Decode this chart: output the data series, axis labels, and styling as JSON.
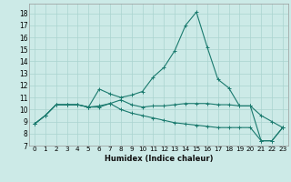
{
  "title": "",
  "xlabel": "Humidex (Indice chaleur)",
  "background_color": "#cceae7",
  "grid_color": "#aad4d0",
  "line_color": "#1a7a6e",
  "xlim": [
    -0.5,
    23.5
  ],
  "ylim": [
    7,
    18.8
  ],
  "yticks": [
    7,
    8,
    9,
    10,
    11,
    12,
    13,
    14,
    15,
    16,
    17,
    18
  ],
  "xticks": [
    0,
    1,
    2,
    3,
    4,
    5,
    6,
    7,
    8,
    9,
    10,
    11,
    12,
    13,
    14,
    15,
    16,
    17,
    18,
    19,
    20,
    21,
    22,
    23
  ],
  "line1_x": [
    0,
    1,
    2,
    3,
    4,
    5,
    6,
    7,
    8,
    9,
    10,
    11,
    12,
    13,
    14,
    15,
    16,
    17,
    18,
    19,
    20,
    21,
    22,
    23
  ],
  "line1_y": [
    8.8,
    9.5,
    10.4,
    10.4,
    10.4,
    10.2,
    11.7,
    11.3,
    11.0,
    11.2,
    11.5,
    12.7,
    13.5,
    14.9,
    17.0,
    18.1,
    15.2,
    12.5,
    11.8,
    10.3,
    10.3,
    7.4,
    7.4,
    8.5
  ],
  "line2_x": [
    0,
    1,
    2,
    3,
    4,
    5,
    6,
    7,
    8,
    9,
    10,
    11,
    12,
    13,
    14,
    15,
    16,
    17,
    18,
    19,
    20,
    21,
    22,
    23
  ],
  "line2_y": [
    8.8,
    9.5,
    10.4,
    10.4,
    10.4,
    10.2,
    10.3,
    10.5,
    10.8,
    10.4,
    10.2,
    10.3,
    10.3,
    10.4,
    10.5,
    10.5,
    10.5,
    10.4,
    10.4,
    10.3,
    10.3,
    9.5,
    9.0,
    8.5
  ],
  "line3_x": [
    0,
    1,
    2,
    3,
    4,
    5,
    6,
    7,
    8,
    9,
    10,
    11,
    12,
    13,
    14,
    15,
    16,
    17,
    18,
    19,
    20,
    21,
    22,
    23
  ],
  "line3_y": [
    8.8,
    9.5,
    10.4,
    10.4,
    10.4,
    10.2,
    10.2,
    10.5,
    10.0,
    9.7,
    9.5,
    9.3,
    9.1,
    8.9,
    8.8,
    8.7,
    8.6,
    8.5,
    8.5,
    8.5,
    8.5,
    7.4,
    7.4,
    8.5
  ],
  "xlabel_fontsize": 6.0,
  "tick_fontsize": 5.2,
  "ytick_fontsize": 5.5
}
